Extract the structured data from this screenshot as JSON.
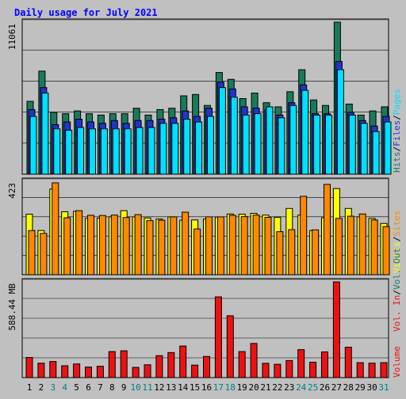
{
  "title": "Daily usage for July 2021",
  "colors": {
    "background": "#c0c0c0",
    "plot_bg": "#c0c0c0",
    "title": "#0000ff",
    "hits": "#1a7a5a",
    "files": "#2233cc",
    "pages": "#00e0ff",
    "visits": "#ffff00",
    "sites": "#ff8800",
    "kbytes": "#ee1111",
    "day_weekday": "#000000",
    "day_weekend": "#008080",
    "sep": "#000000"
  },
  "chart_data": [
    {
      "type": "bar",
      "title": "Daily usage for July 2021",
      "panel": "hits-files-pages",
      "ymax_label": "11061",
      "ylim": [
        0,
        11061
      ],
      "legend": [
        {
          "label": "Hits",
          "color": "#1a7a5a"
        },
        {
          "sep": "/"
        },
        {
          "label": "Files",
          "color": "#2233cc"
        },
        {
          "sep": "/"
        },
        {
          "label": "Pages",
          "color": "#00e0ff"
        }
      ],
      "categories": [
        "1",
        "2",
        "3",
        "4",
        "5",
        "6",
        "7",
        "8",
        "9",
        "10",
        "11",
        "12",
        "13",
        "14",
        "15",
        "16",
        "17",
        "18",
        "19",
        "20",
        "21",
        "22",
        "23",
        "24",
        "25",
        "26",
        "27",
        "28",
        "29",
        "30",
        "31"
      ],
      "series": [
        {
          "name": "Hits",
          "color": "#1a7a5a",
          "values": [
            5300,
            7500,
            4500,
            4400,
            4600,
            4400,
            4300,
            4400,
            4400,
            4800,
            4300,
            4700,
            4800,
            5700,
            5800,
            5000,
            7400,
            6900,
            5500,
            5900,
            5200,
            4900,
            6000,
            7600,
            5400,
            5000,
            11061,
            5100,
            4300,
            4600,
            4900
          ]
        },
        {
          "name": "Files",
          "color": "#2233cc",
          "values": [
            4700,
            6300,
            3600,
            3800,
            4000,
            3800,
            3700,
            3900,
            3700,
            3900,
            3900,
            4000,
            4100,
            4600,
            4200,
            4800,
            6700,
            6200,
            4900,
            4800,
            4700,
            4300,
            5200,
            6500,
            4400,
            4400,
            8200,
            4500,
            3900,
            3500,
            4200
          ]
        },
        {
          "name": "Pages",
          "color": "#00e0ff",
          "values": [
            4200,
            5900,
            3300,
            3200,
            3400,
            3300,
            3300,
            3300,
            3300,
            3400,
            3400,
            3700,
            3700,
            4000,
            3800,
            4200,
            6300,
            5600,
            4300,
            4400,
            4900,
            4100,
            5000,
            6100,
            4300,
            4300,
            7600,
            4300,
            3700,
            3100,
            3800
          ]
        }
      ]
    },
    {
      "type": "bar",
      "panel": "visits-sites",
      "ymax_label": "423",
      "ylim": [
        0,
        423
      ],
      "legend": [
        {
          "label": "Visits",
          "color": "#ffff00"
        },
        {
          "sep": "/"
        },
        {
          "label": "Sites",
          "color": "#ff8800"
        }
      ],
      "categories": [
        "1",
        "2",
        "3",
        "4",
        "5",
        "6",
        "7",
        "8",
        "9",
        "10",
        "11",
        "12",
        "13",
        "14",
        "15",
        "16",
        "17",
        "18",
        "19",
        "20",
        "21",
        "22",
        "23",
        "24",
        "25",
        "26",
        "27",
        "28",
        "29",
        "30",
        "31"
      ],
      "series": [
        {
          "name": "Visits",
          "color": "#ffff00",
          "values": [
            274,
            200,
            388,
            285,
            287,
            255,
            256,
            262,
            290,
            262,
            257,
            252,
            262,
            247,
            248,
            252,
            261,
            275,
            274,
            278,
            270,
            260,
            300,
            270,
            200,
            258,
            390,
            300,
            262,
            255,
            232
          ]
        },
        {
          "name": "Sites",
          "color": "#ff8800",
          "values": [
            200,
            187,
            416,
            258,
            290,
            269,
            268,
            270,
            259,
            272,
            245,
            247,
            262,
            283,
            207,
            262,
            262,
            269,
            263,
            270,
            260,
            195,
            204,
            355,
            203,
            409,
            255,
            265,
            275,
            248,
            218
          ]
        }
      ]
    },
    {
      "type": "bar",
      "panel": "volume",
      "ymax_label": "588.44 MB",
      "ylim": [
        0,
        588.44
      ],
      "legend_top": [
        {
          "label": "Vol. In",
          "color": "#ee1111"
        },
        {
          "sep": "/"
        },
        {
          "label": "Vol. Out",
          "color": "#1a7a5a"
        }
      ],
      "legend_bottom": [
        {
          "label": "Volume",
          "color": "#ee1111"
        }
      ],
      "categories": [
        "1",
        "2",
        "3",
        "4",
        "5",
        "6",
        "7",
        "8",
        "9",
        "10",
        "11",
        "12",
        "13",
        "14",
        "15",
        "16",
        "17",
        "18",
        "19",
        "20",
        "21",
        "22",
        "23",
        "24",
        "25",
        "26",
        "27",
        "28",
        "29",
        "30",
        "31"
      ],
      "series": [
        {
          "name": "Volume",
          "color": "#ee1111",
          "values": [
            124,
            89,
            99,
            73,
            84,
            65,
            70,
            160,
            165,
            63,
            79,
            135,
            154,
            194,
            77,
            130,
            496,
            380,
            160,
            210,
            88,
            82,
            105,
            172,
            95,
            158,
            588,
            187,
            92,
            89,
            92
          ]
        }
      ]
    }
  ],
  "x_labels": {
    "days": [
      "1",
      "2",
      "3",
      "4",
      "5",
      "6",
      "7",
      "8",
      "9",
      "10",
      "11",
      "12",
      "13",
      "14",
      "15",
      "16",
      "17",
      "18",
      "19",
      "20",
      "21",
      "22",
      "23",
      "24",
      "25",
      "26",
      "27",
      "28",
      "29",
      "30",
      "31"
    ],
    "weekend_days": [
      "3",
      "4",
      "10",
      "11",
      "17",
      "18",
      "24",
      "25",
      "31"
    ]
  }
}
